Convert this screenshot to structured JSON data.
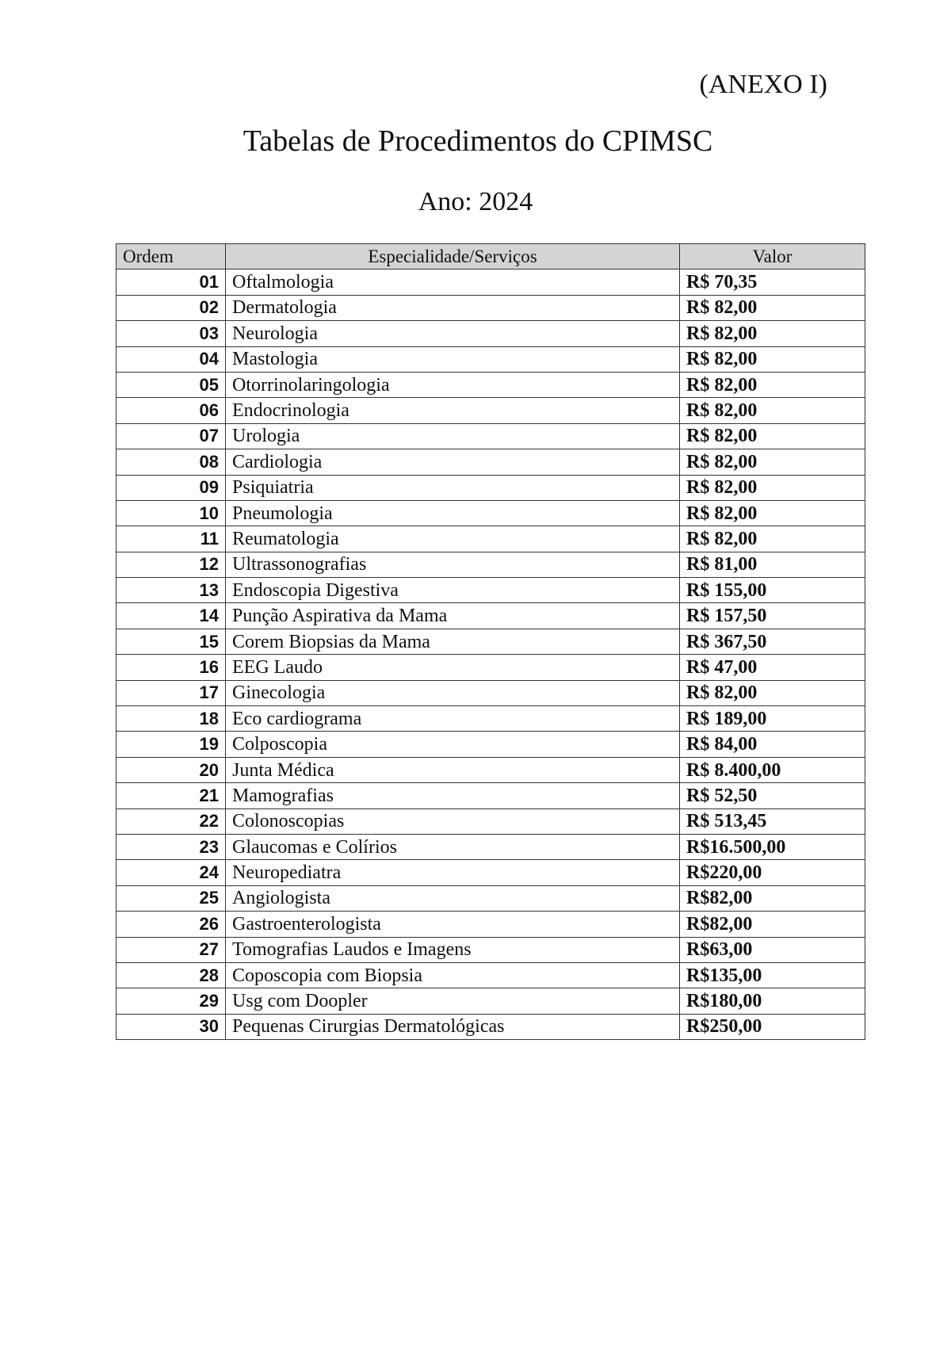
{
  "header": {
    "annex": "(ANEXO I)",
    "title": "Tabelas de Procedimentos do CPIMSC",
    "year": "Ano: 2024"
  },
  "table": {
    "columns": [
      "Ordem",
      "Especialidade/Serviços",
      "Valor"
    ],
    "rows": [
      [
        "01",
        "Oftalmologia",
        "R$ 70,35"
      ],
      [
        "02",
        "Dermatologia",
        "R$ 82,00"
      ],
      [
        "03",
        "Neurologia",
        "R$ 82,00"
      ],
      [
        "04",
        "Mastologia",
        "R$ 82,00"
      ],
      [
        "05",
        "Otorrinolaringologia",
        "R$ 82,00"
      ],
      [
        "06",
        "Endocrinologia",
        "R$ 82,00"
      ],
      [
        "07",
        "Urologia",
        "R$ 82,00"
      ],
      [
        "08",
        "Cardiologia",
        "R$ 82,00"
      ],
      [
        "09",
        "Psiquiatria",
        "R$ 82,00"
      ],
      [
        "10",
        "Pneumologia",
        "R$ 82,00"
      ],
      [
        "11",
        "Reumatologia",
        "R$ 82,00"
      ],
      [
        "12",
        "Ultrassonografias",
        "R$ 81,00"
      ],
      [
        "13",
        "Endoscopia Digestiva",
        "R$ 155,00"
      ],
      [
        "14",
        "Punção Aspirativa da Mama",
        "R$ 157,50"
      ],
      [
        "15",
        "Corem Biopsias da Mama",
        "R$ 367,50"
      ],
      [
        "16",
        "EEG Laudo",
        "R$ 47,00"
      ],
      [
        "17",
        "Ginecologia",
        "R$ 82,00"
      ],
      [
        "18",
        "Eco cardiograma",
        "R$ 189,00"
      ],
      [
        "19",
        "Colposcopia",
        "R$ 84,00"
      ],
      [
        "20",
        "Junta Médica",
        "R$ 8.400,00"
      ],
      [
        "21",
        "Mamografias",
        "R$ 52,50"
      ],
      [
        "22",
        "Colonoscopias",
        "R$ 513,45"
      ],
      [
        "23",
        "Glaucomas e Colírios",
        "R$16.500,00"
      ],
      [
        "24",
        "Neuropediatra",
        "R$220,00"
      ],
      [
        "25",
        "Angiologista",
        "R$82,00"
      ],
      [
        "26",
        "Gastroenterologista",
        "R$82,00"
      ],
      [
        "27",
        "Tomografias Laudos e Imagens",
        "R$63,00"
      ],
      [
        "28",
        "Coposcopia com Biopsia",
        "R$135,00"
      ],
      [
        "29",
        "Usg com Doopler",
        "R$180,00"
      ],
      [
        "30",
        "Pequenas Cirurgias Dermatológicas",
        "R$250,00"
      ]
    ]
  }
}
